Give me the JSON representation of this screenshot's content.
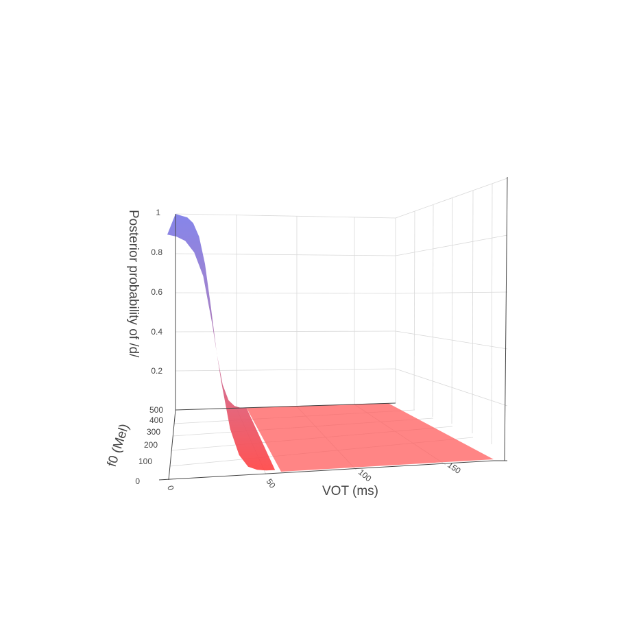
{
  "chart_data": {
    "type": "surface",
    "xlabel": "VOT (ms)",
    "ylabel": "f0 (Mel)",
    "zlabel": "Posterior probability of /d/",
    "x_ticks": [
      "0",
      "50",
      "100",
      "150"
    ],
    "y_ticks": [
      "0",
      "100",
      "200",
      "300",
      "400",
      "500"
    ],
    "z_ticks": [
      "0.2",
      "0.4",
      "0.6",
      "0.8",
      "1"
    ],
    "x_range": [
      0,
      180
    ],
    "y_range": [
      0,
      500
    ],
    "z_range": [
      0,
      1.15
    ],
    "surface": {
      "function": "logistic",
      "vot_values": [
        0,
        5,
        10,
        15,
        20,
        25,
        30,
        35,
        40,
        45,
        50,
        55,
        60,
        70,
        80,
        100,
        120,
        150,
        175
      ],
      "probability_at_f0_0": [
        1.0,
        0.99,
        0.97,
        0.92,
        0.82,
        0.62,
        0.38,
        0.18,
        0.07,
        0.02,
        0.005,
        0.0,
        0.0,
        0.0,
        0.0,
        0.0,
        0.0,
        0.0,
        0.0
      ],
      "probability_at_f0_500": [
        1.0,
        0.99,
        0.98,
        0.95,
        0.88,
        0.74,
        0.52,
        0.28,
        0.12,
        0.04,
        0.01,
        0.0,
        0.0,
        0.0,
        0.0,
        0.0,
        0.0,
        0.0,
        0.0
      ],
      "colorscale": [
        "#ff4b4b",
        "#7b7be8"
      ]
    },
    "grid": true
  }
}
